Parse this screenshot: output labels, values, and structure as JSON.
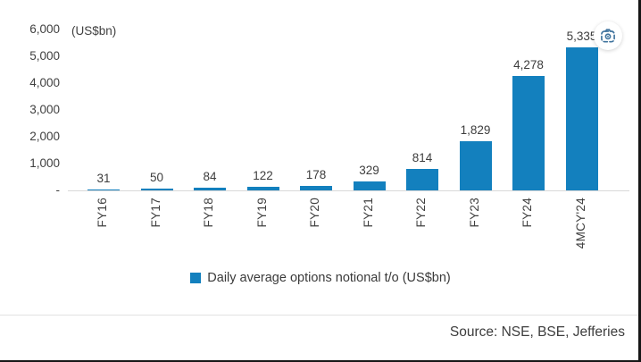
{
  "chart_data": {
    "type": "bar",
    "title": "",
    "unit_label": "(US$bn)",
    "categories": [
      "FY16",
      "FY17",
      "FY18",
      "FY19",
      "FY20",
      "FY21",
      "FY22",
      "FY23",
      "FY24",
      "4MCY'24"
    ],
    "values": [
      31,
      50,
      84,
      122,
      178,
      329,
      814,
      1829,
      4278,
      5335
    ],
    "value_labels": [
      "31",
      "50",
      "84",
      "122",
      "178",
      "329",
      "814",
      "1,829",
      "4,278",
      "5,335"
    ],
    "series": [
      {
        "name": "Daily average options notional t/o (US$bn)",
        "values": [
          31,
          50,
          84,
          122,
          178,
          329,
          814,
          1829,
          4278,
          5335
        ]
      }
    ],
    "yticks": [
      {
        "label": "6,000",
        "value": 6000
      },
      {
        "label": "5,000",
        "value": 5000
      },
      {
        "label": "4,000",
        "value": 4000
      },
      {
        "label": "3,000",
        "value": 3000
      },
      {
        "label": "2,000",
        "value": 2000
      },
      {
        "label": "1,000",
        "value": 1000
      },
      {
        "label": "-",
        "value": 0
      }
    ],
    "ylim": [
      0,
      6000
    ],
    "grid": false,
    "legend": "Daily average options notional t/o (US$bn)",
    "legend_position": "bottom-center",
    "bar_color": "#1380BE"
  },
  "footer": {
    "source": "Source: NSE, BSE, Jefferies"
  },
  "icons": {
    "lens": "camera-lens-icon"
  }
}
